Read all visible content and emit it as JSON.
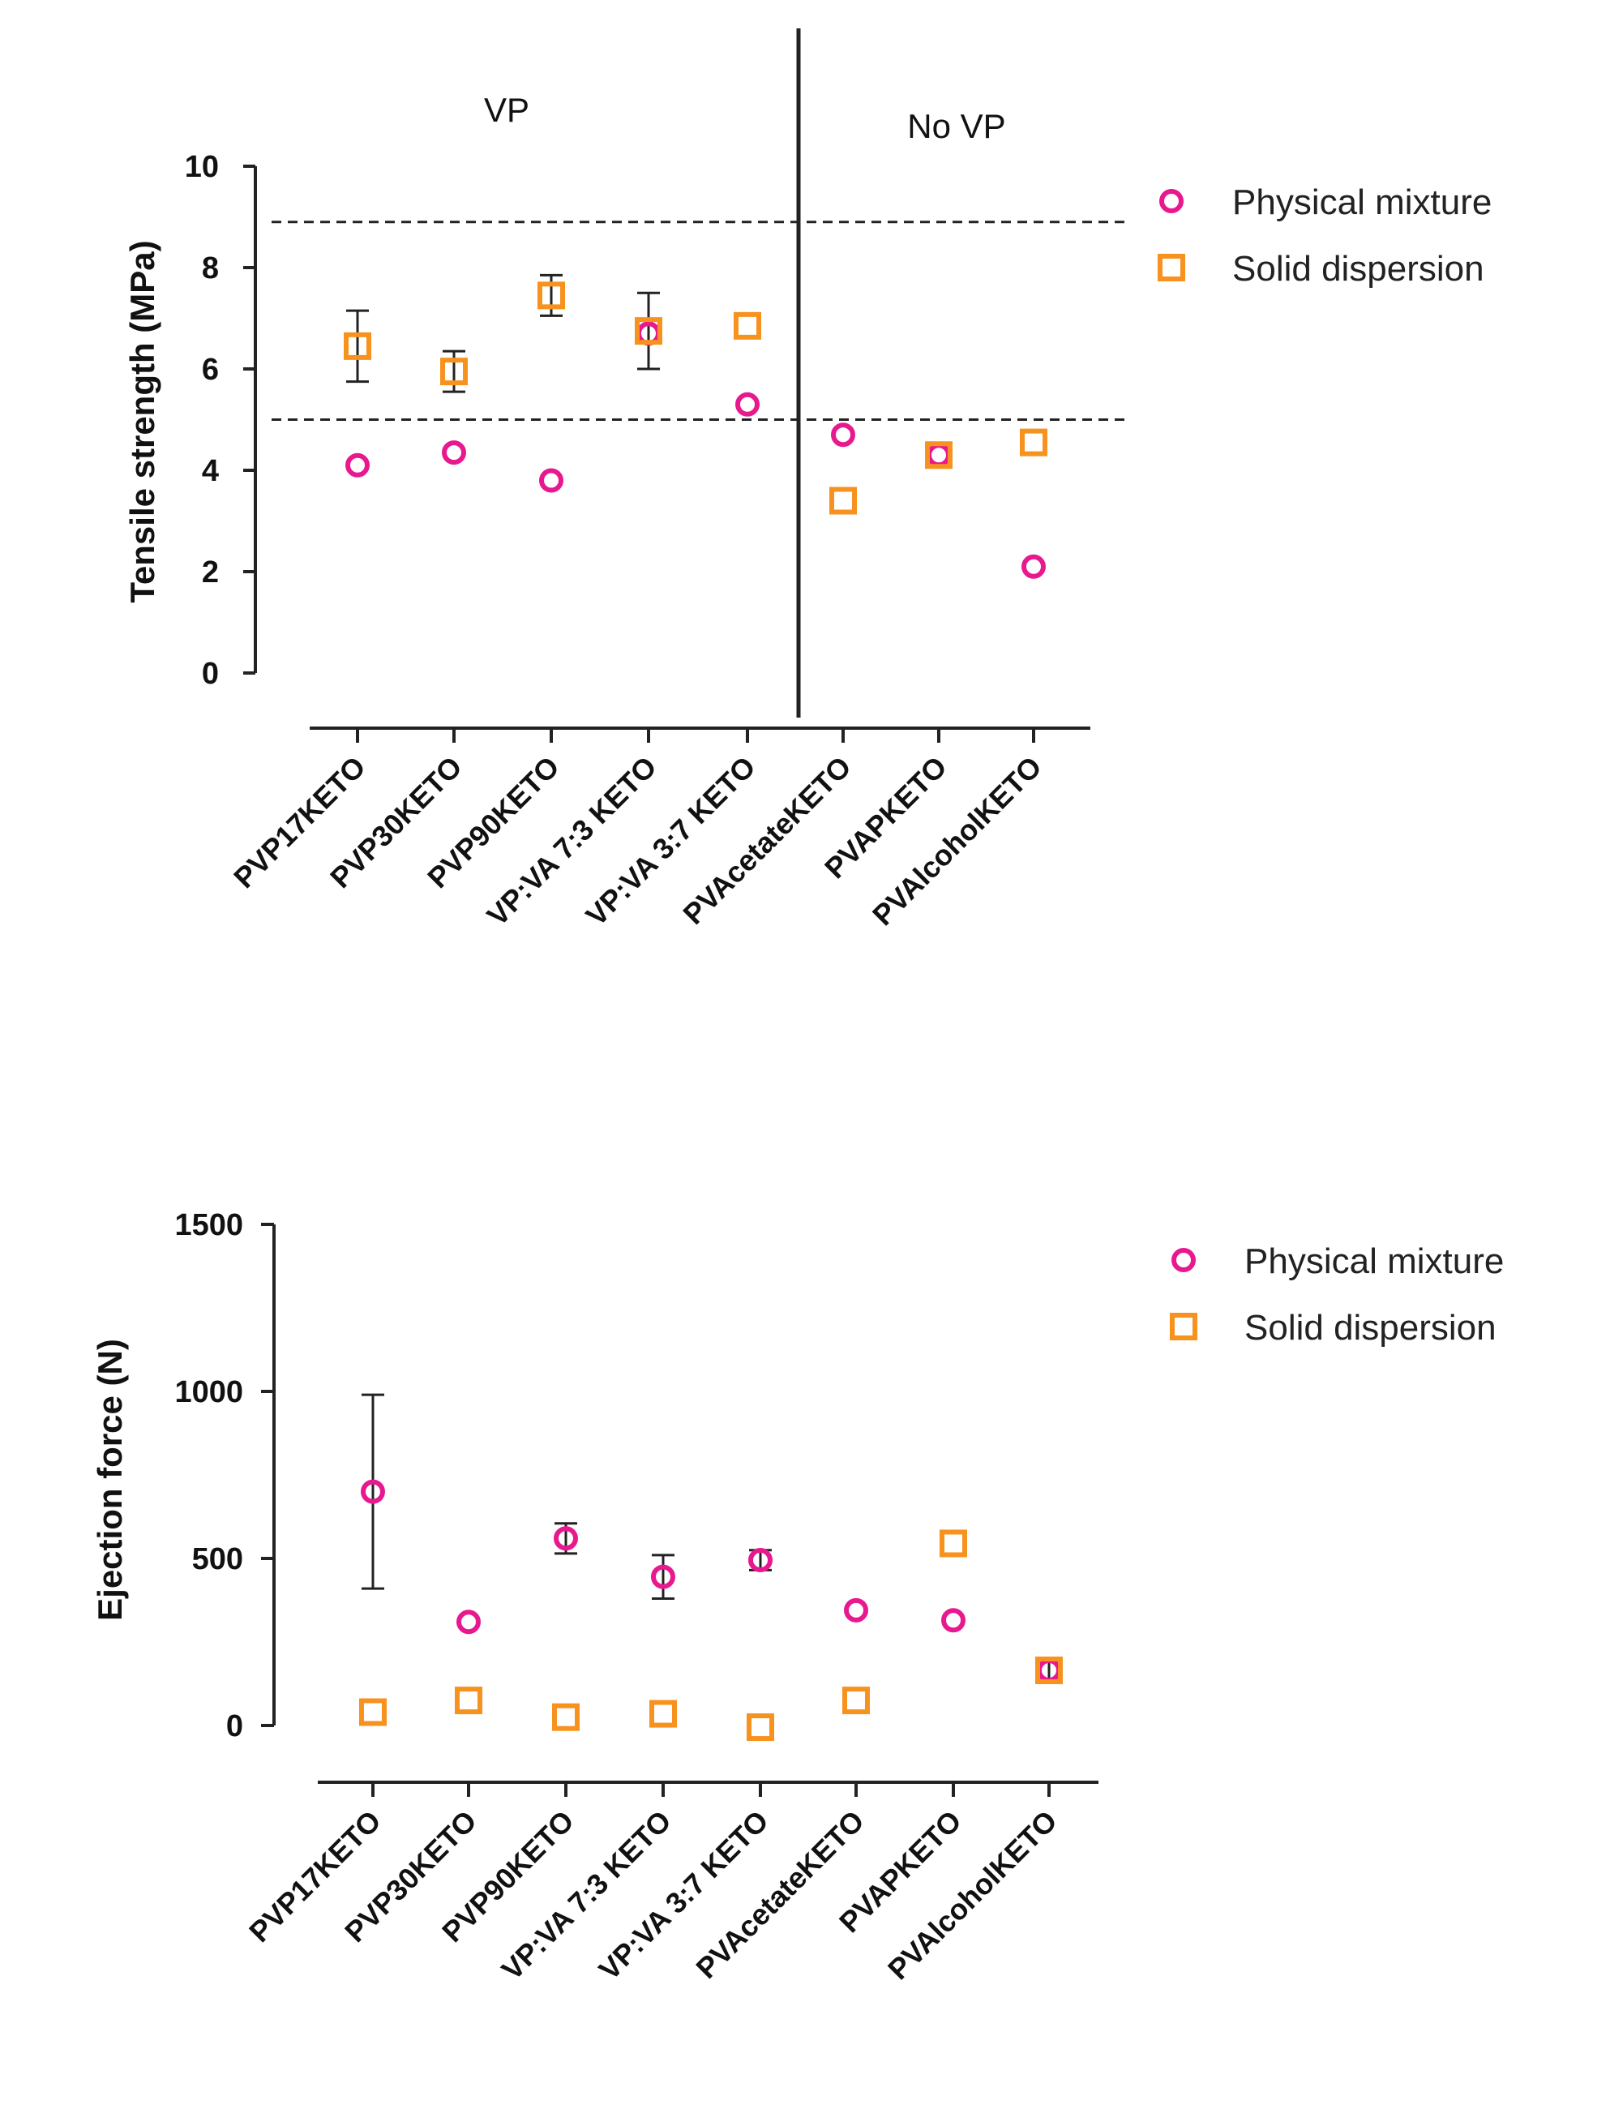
{
  "colors": {
    "physical_mixture": "#e8198f",
    "solid_dispersion": "#f7921e",
    "axis": "#222222",
    "error_bar": "#222222",
    "reference_line": "#222222"
  },
  "chart_data": [
    {
      "type": "scatter",
      "ylabel": "Tensile strength (MPa)",
      "xlabel": "",
      "ylim": [
        0,
        10
      ],
      "yticks": [
        "0",
        "2",
        "4",
        "6",
        "8",
        "10"
      ],
      "categories": [
        "PVP17KETO",
        "PVP30KETO",
        "PVP90KETO",
        "VP:VA 7:3 KETO",
        "VP:VA 3:7 KETO",
        "PVAcetateKETO",
        "PVAPKETO",
        "PVAlcoholKETO"
      ],
      "region_labels": [
        "VP",
        "No VP"
      ],
      "reference_lines": [
        5.0,
        8.9
      ],
      "series": [
        {
          "name": "Physical mixture",
          "marker": "circle",
          "values": [
            4.1,
            4.35,
            3.8,
            6.7,
            5.3,
            4.7,
            4.3,
            2.1
          ],
          "errors": [
            0,
            0,
            0,
            0,
            0,
            0,
            0,
            0
          ]
        },
        {
          "name": "Solid dispersion",
          "marker": "square",
          "values": [
            6.45,
            5.95,
            7.45,
            6.75,
            6.85,
            3.4,
            4.3,
            4.55
          ],
          "errors": [
            0.7,
            0.4,
            0.4,
            0.75,
            0,
            0,
            0,
            0
          ]
        }
      ],
      "legend": [
        "Physical mixture",
        "Solid dispersion"
      ],
      "legend_position": "right"
    },
    {
      "type": "scatter",
      "ylabel": "Ejection force (N)",
      "xlabel": "",
      "ylim": [
        0,
        1500
      ],
      "yticks": [
        "0",
        "500",
        "1000",
        "1500"
      ],
      "categories": [
        "PVP17KETO",
        "PVP30KETO",
        "PVP90KETO",
        "VP:VA 7:3 KETO",
        "VP:VA 3:7 KETO",
        "PVAcetateKETO",
        "PVAPKETO",
        "PVAlcoholKETO"
      ],
      "series": [
        {
          "name": "Physical mixture",
          "marker": "circle",
          "values": [
            700,
            310,
            560,
            445,
            495,
            345,
            315,
            165
          ],
          "errors": [
            290,
            0,
            45,
            65,
            30,
            0,
            0,
            30
          ]
        },
        {
          "name": "Solid dispersion",
          "marker": "square",
          "values": [
            40,
            75,
            25,
            35,
            -5,
            75,
            545,
            165
          ],
          "errors": [
            0,
            0,
            0,
            0,
            0,
            0,
            0,
            0
          ]
        }
      ],
      "legend": [
        "Physical mixture",
        "Solid dispersion"
      ],
      "legend_position": "right"
    }
  ]
}
